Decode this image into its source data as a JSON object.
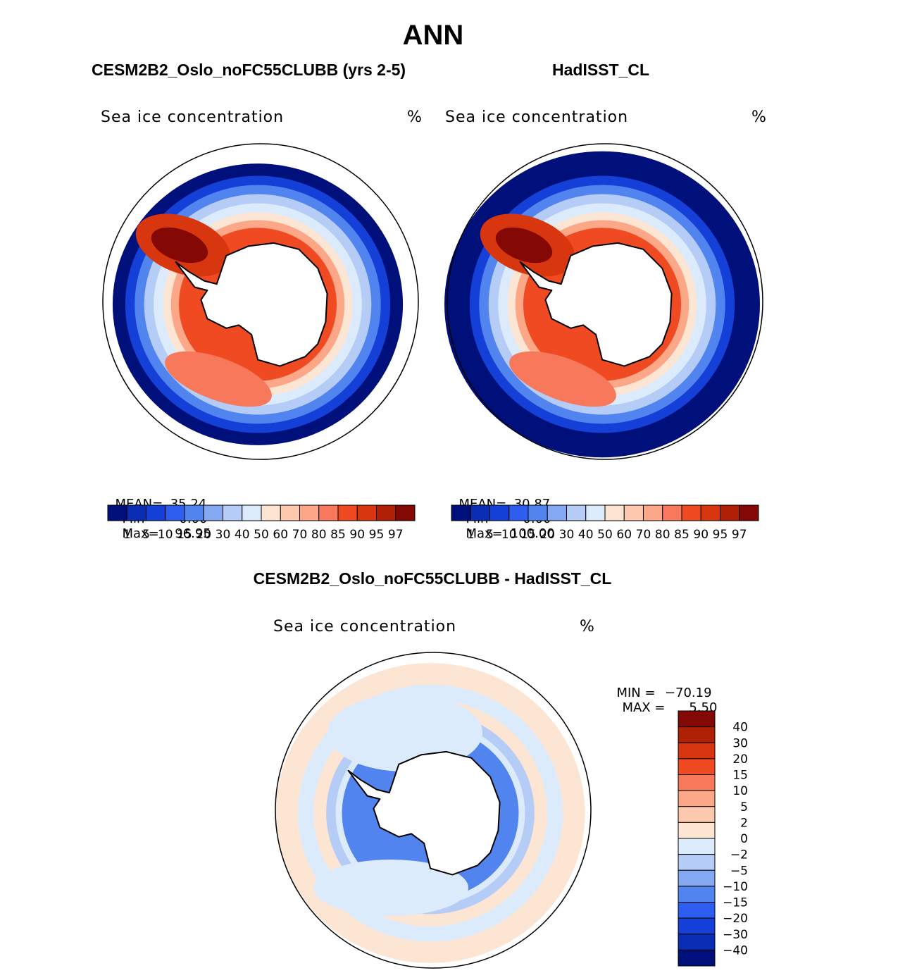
{
  "figure": {
    "main_title": "ANN",
    "left_case_title": "CESM2B2_Oslo_noFC55CLUBB (yrs 2-5)",
    "right_case_title": "HadISST_CL",
    "diff_title": "CESM2B2_Oslo_noFC55CLUBB - HadISST_CL"
  },
  "chart_data": [
    {
      "type": "heatmap",
      "name": "model-panel",
      "projection": "south-polar-stereographic",
      "variable_label": "Sea ice concentration",
      "units": "%",
      "stats": {
        "mean_label": "MEAN=",
        "mean": "35.24",
        "min_label": "Min=",
        "min": "0.00",
        "max_label": "Max=",
        "max": "96.95"
      },
      "colorbar": {
        "levels": [
          "1",
          "5",
          "10",
          "15",
          "20",
          "30",
          "40",
          "50",
          "60",
          "70",
          "80",
          "85",
          "90",
          "95",
          "97"
        ],
        "colors": [
          "#00107a",
          "#0a2db5",
          "#1440d8",
          "#2d5ef0",
          "#5284f0",
          "#84a8f2",
          "#b4ccf6",
          "#dcebfb",
          "#fde5d4",
          "#fcc8ae",
          "#fba788",
          "#f7785a",
          "#f04a22",
          "#d8360e",
          "#b02004",
          "#840804"
        ]
      }
    },
    {
      "type": "heatmap",
      "name": "obs-panel",
      "projection": "south-polar-stereographic",
      "variable_label": "Sea ice concentration",
      "units": "%",
      "stats": {
        "mean_label": "MEAN=",
        "mean": "30.87",
        "min_label": "Min=",
        "min": "0.00",
        "max_label": "Max=",
        "max": "100.00"
      },
      "colorbar": {
        "levels": [
          "1",
          "5",
          "10",
          "15",
          "20",
          "30",
          "40",
          "50",
          "60",
          "70",
          "80",
          "85",
          "90",
          "95",
          "97"
        ],
        "colors": [
          "#00107a",
          "#0a2db5",
          "#1440d8",
          "#2d5ef0",
          "#5284f0",
          "#84a8f2",
          "#b4ccf6",
          "#dcebfb",
          "#fde5d4",
          "#fcc8ae",
          "#fba788",
          "#f7785a",
          "#f04a22",
          "#d8360e",
          "#b02004",
          "#840804"
        ]
      }
    },
    {
      "type": "heatmap",
      "name": "diff-panel",
      "projection": "south-polar-stereographic",
      "variable_label": "Sea ice concentration",
      "units": "%",
      "stats": {
        "min_label": "MIN =",
        "min": "−70.19",
        "max_label": "MAX =",
        "max": "5.50"
      },
      "colorbar": {
        "levels": [
          "40",
          "30",
          "20",
          "15",
          "10",
          "5",
          "2",
          "0",
          "−2",
          "−5",
          "−10",
          "−15",
          "−20",
          "−30",
          "−40"
        ],
        "colors": [
          "#840804",
          "#b02004",
          "#d8360e",
          "#f04a22",
          "#f7785a",
          "#fba788",
          "#fcc8ae",
          "#fde5d4",
          "#dcebfb",
          "#b4ccf6",
          "#84a8f2",
          "#5284f0",
          "#2d5ef0",
          "#1440d8",
          "#0a2db5",
          "#00107a"
        ]
      }
    }
  ]
}
